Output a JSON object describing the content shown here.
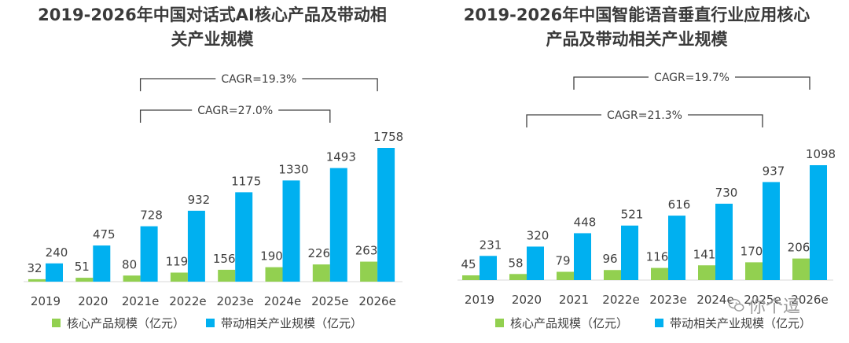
{
  "chart_data": [
    {
      "type": "bar",
      "title_lines": [
        "2019-2026年中国对话式AI核心产品及带动相",
        "关产业规模"
      ],
      "categories": [
        "2019",
        "2020",
        "2021e",
        "2022e",
        "2023e",
        "2024e",
        "2025e",
        "2026e"
      ],
      "series": [
        {
          "name": "核心产品规模（亿元）",
          "color": "#92d050",
          "values": [
            32,
            51,
            80,
            119,
            156,
            190,
            226,
            263
          ]
        },
        {
          "name": "带动相关产业规模（亿元）",
          "color": "#00b0f0",
          "values": [
            240,
            475,
            728,
            932,
            1175,
            1330,
            1493,
            1758
          ]
        }
      ],
      "annotations": [
        {
          "text": "CAGR=19.3%",
          "from_category": "2021e",
          "to_category": "2026e"
        },
        {
          "text": "CAGR=27.0%",
          "from_category": "2021e",
          "to_category": "2025e"
        }
      ],
      "ylim": [
        0,
        1758
      ],
      "grid": false,
      "legend_position": "bottom"
    },
    {
      "type": "bar",
      "title_lines": [
        "2019-2026年中国智能语音垂直行业应用核心",
        "产品及带动相关产业规模"
      ],
      "categories": [
        "2019",
        "2020",
        "2021",
        "2022e",
        "2023e",
        "2024e",
        "2025e",
        "2026e"
      ],
      "series": [
        {
          "name": "核心产品规模（亿元）",
          "color": "#92d050",
          "values": [
            45,
            58,
            79,
            96,
            116,
            141,
            170,
            206
          ]
        },
        {
          "name": "带动相关产业规模（亿元）",
          "color": "#00b0f0",
          "values": [
            231,
            320,
            448,
            521,
            616,
            730,
            937,
            1098
          ]
        }
      ],
      "annotations": [
        {
          "text": "CAGR=19.7%",
          "from_category": "2021",
          "to_category": "2026e"
        },
        {
          "text": "CAGR=21.3%",
          "from_category": "2020",
          "to_category": "2025e"
        }
      ],
      "ylim": [
        0,
        1098
      ],
      "grid": false,
      "legend_position": "bottom"
    }
  ],
  "watermark": {
    "text": "你个逗",
    "icon": "wechat-icon"
  }
}
